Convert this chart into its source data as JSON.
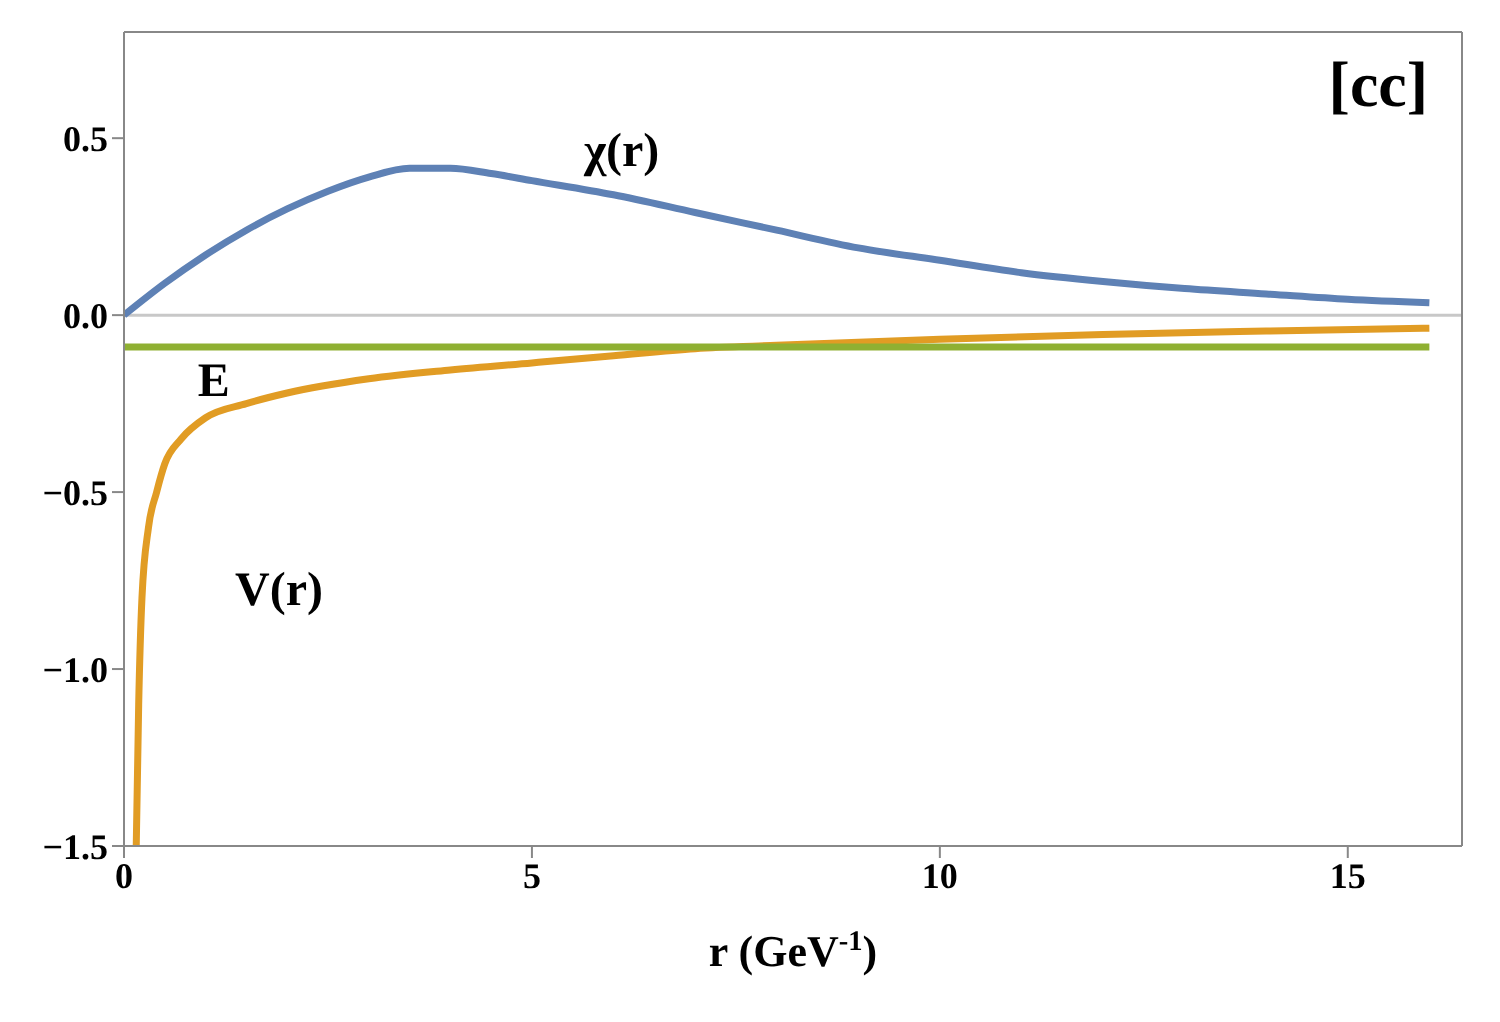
{
  "chart_data": {
    "type": "line",
    "xlabel": "r (GeV$^{-1}$)",
    "annotations": [
      "[cc]"
    ],
    "xlim": [
      0,
      16.4
    ],
    "xticks": [
      0,
      5,
      10,
      15
    ],
    "ylim": [
      -1.5,
      0.8
    ],
    "yticks": [
      -1.5,
      {
        "value": -1,
        "label": "−1.0"
      },
      -0.5,
      {
        "value": 0,
        "label": "0.0"
      },
      0.5
    ],
    "ref_lines": [
      {
        "axis": "y",
        "value": 0,
        "color": "#c8c8c8"
      }
    ],
    "marker": "none",
    "line_style": "solid",
    "series": [
      {
        "name": "χ(r)",
        "color": "#5e81b5",
        "x": [
          0,
          0.5,
          1,
          1.5,
          2,
          2.5,
          3,
          3.5,
          4,
          4.5,
          5,
          6,
          7,
          8,
          9,
          10,
          11,
          12,
          13,
          14,
          15,
          16
        ],
        "values": [
          0,
          0.09,
          0.17,
          0.24,
          0.3,
          0.35,
          0.39,
          0.415,
          0.415,
          0.4,
          0.38,
          0.34,
          0.29,
          0.24,
          0.19,
          0.155,
          0.12,
          0.095,
          0.075,
          0.06,
          0.045,
          0.035
        ]
      },
      {
        "name": "V(r)",
        "color": "#e19c24",
        "x": [
          0.15,
          0.18,
          0.22,
          0.3,
          0.4,
          0.5,
          0.7,
          1,
          1.5,
          2,
          3,
          4,
          5,
          6,
          7,
          8,
          10,
          12,
          14,
          16
        ],
        "values": [
          -1.5,
          -1.1,
          -0.8,
          -0.6,
          -0.5,
          -0.42,
          -0.35,
          -0.29,
          -0.25,
          -0.22,
          -0.18,
          -0.155,
          -0.135,
          -0.115,
          -0.095,
          -0.085,
          -0.068,
          -0.055,
          -0.045,
          -0.037
        ]
      },
      {
        "name": "E",
        "color": "#8fb032",
        "x": [
          0,
          16
        ],
        "values": [
          -0.09,
          -0.09
        ]
      }
    ]
  }
}
